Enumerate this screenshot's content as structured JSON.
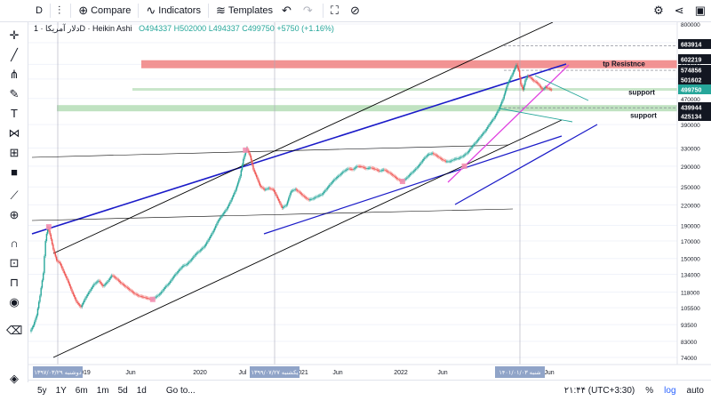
{
  "toolbar": {
    "symbol": "D",
    "compare": "Compare",
    "indicators": "Indicators",
    "templates": "Templates"
  },
  "legend": {
    "name": "دلار آمریکا · 1D · Heikin Ashi",
    "open": "O494337",
    "high": "H502000",
    "low": "L494337",
    "close": "C499750",
    "change": "+5750 (+1.16%)"
  },
  "bottom": {
    "ranges": [
      "5y",
      "1Y",
      "6m",
      "1m",
      "5d",
      "1d"
    ],
    "goto": "Go to...",
    "clock": "۲۱:۴۴ (UTC+3:30)",
    "pct": "%",
    "log": "log",
    "auto": "auto"
  },
  "colors": {
    "up": "#26a69a",
    "down": "#ef5350",
    "blue_line": "#1a1ac8",
    "magenta_line": "#e040e0",
    "teal_line": "#26a69a",
    "resistance_zone": "#f08080",
    "support_zone": "#a5d6a7"
  },
  "chart_data": {
    "type": "candlestick",
    "scale": "log",
    "price_axis_ticks": [
      800000,
      700000,
      600000,
      540000,
      470000,
      390000,
      330000,
      290000,
      250000,
      220000,
      190000,
      170000,
      150000,
      134000,
      118000,
      105500,
      93500,
      83000,
      74000
    ],
    "price_badges": [
      {
        "value": "683914",
        "color": "#131722"
      },
      {
        "value": "602219",
        "color": "#131722"
      },
      {
        "value": "574856",
        "color": "#131722"
      },
      {
        "value": "501602",
        "color": "#131722"
      },
      {
        "value": "499750",
        "color": "#26a69a"
      },
      {
        "value": "439944",
        "color": "#131722"
      },
      {
        "value": "425134",
        "color": "#131722"
      }
    ],
    "time_axis_ticks": [
      "2019",
      "Jun",
      "2020",
      "Jul",
      "2021",
      "Jun",
      "2022",
      "Jun",
      "Jun"
    ],
    "time_badges": [
      "۱۳۹۷/۰۳/۲۹ دوشنبه",
      "۱۳۹۹/۰۷/۲۷ یکشنبه",
      "۱۴۰۱/۰۱/۰۳ شنبه"
    ],
    "annotations": [
      {
        "text": "tp  Resistnce",
        "price": 602219
      },
      {
        "text": "support",
        "price": 501602
      },
      {
        "text": "support",
        "price": 425134
      }
    ],
    "series": [
      {
        "name": "",
        "path": [
          [
            0,
            89000
          ],
          [
            3,
            93000
          ],
          [
            6,
            100000
          ],
          [
            9,
            115000
          ],
          [
            12,
            135000
          ],
          [
            14,
            170000
          ],
          [
            16,
            188000
          ],
          [
            18,
            178000
          ],
          [
            21,
            160000
          ],
          [
            24,
            148000
          ],
          [
            27,
            145000
          ],
          [
            30,
            137000
          ],
          [
            34,
            128000
          ],
          [
            38,
            118000
          ],
          [
            42,
            110000
          ],
          [
            46,
            106000
          ],
          [
            50,
            113000
          ],
          [
            54,
            119000
          ],
          [
            58,
            125000
          ],
          [
            62,
            128000
          ],
          [
            66,
            123000
          ],
          [
            70,
            127000
          ],
          [
            74,
            133000
          ],
          [
            78,
            130000
          ],
          [
            82,
            126000
          ],
          [
            86,
            123000
          ],
          [
            90,
            120000
          ],
          [
            94,
            117000
          ],
          [
            98,
            115000
          ],
          [
            102,
            114000
          ],
          [
            106,
            113000
          ],
          [
            110,
            112000
          ],
          [
            114,
            114000
          ],
          [
            118,
            117000
          ],
          [
            122,
            122000
          ],
          [
            126,
            126000
          ],
          [
            130,
            132000
          ],
          [
            134,
            137000
          ],
          [
            138,
            142000
          ],
          [
            142,
            144000
          ],
          [
            146,
            149000
          ],
          [
            150,
            155000
          ],
          [
            154,
            159000
          ],
          [
            158,
            164000
          ],
          [
            162,
            173000
          ],
          [
            166,
            183000
          ],
          [
            170,
            196000
          ],
          [
            174,
            205000
          ],
          [
            178,
            214000
          ],
          [
            182,
            228000
          ],
          [
            186,
            245000
          ],
          [
            190,
            270000
          ],
          [
            193,
            305000
          ],
          [
            196,
            330000
          ],
          [
            199,
            312000
          ],
          [
            202,
            283000
          ],
          [
            205,
            268000
          ],
          [
            208,
            252000
          ],
          [
            212,
            245000
          ],
          [
            216,
            248000
          ],
          [
            220,
            245000
          ],
          [
            224,
            230000
          ],
          [
            228,
            215000
          ],
          [
            232,
            220000
          ],
          [
            236,
            242000
          ],
          [
            240,
            246000
          ],
          [
            244,
            240000
          ],
          [
            248,
            233000
          ],
          [
            252,
            228000
          ],
          [
            256,
            230000
          ],
          [
            260,
            234000
          ],
          [
            264,
            237000
          ],
          [
            268,
            246000
          ],
          [
            272,
            256000
          ],
          [
            276,
            265000
          ],
          [
            280,
            272000
          ],
          [
            284,
            280000
          ],
          [
            288,
            285000
          ],
          [
            292,
            283000
          ],
          [
            296,
            290000
          ],
          [
            300,
            289000
          ],
          [
            304,
            285000
          ],
          [
            308,
            287000
          ],
          [
            312,
            284000
          ],
          [
            316,
            280000
          ],
          [
            320,
            283000
          ],
          [
            324,
            278000
          ],
          [
            328,
            272000
          ],
          [
            332,
            265000
          ],
          [
            336,
            260000
          ],
          [
            340,
            265000
          ],
          [
            344,
            274000
          ],
          [
            348,
            282000
          ],
          [
            352,
            292000
          ],
          [
            356,
            305000
          ],
          [
            360,
            315000
          ],
          [
            364,
            318000
          ],
          [
            368,
            312000
          ],
          [
            372,
            305000
          ],
          [
            376,
            300000
          ],
          [
            380,
            300000
          ],
          [
            384,
            305000
          ],
          [
            388,
            307000
          ],
          [
            392,
            312000
          ],
          [
            396,
            320000
          ],
          [
            400,
            334000
          ],
          [
            404,
            346000
          ],
          [
            408,
            360000
          ],
          [
            412,
            374000
          ],
          [
            416,
            393000
          ],
          [
            420,
            410000
          ],
          [
            424,
            435000
          ],
          [
            428,
            470000
          ],
          [
            432,
            522000
          ],
          [
            436,
            556000
          ],
          [
            440,
            598000
          ],
          [
            442,
            575000
          ],
          [
            444,
            520000
          ],
          [
            446,
            500000
          ],
          [
            448,
            535000
          ],
          [
            450,
            552000
          ],
          [
            452,
            548000
          ],
          [
            454,
            540000
          ],
          [
            456,
            532000
          ],
          [
            458,
            528000
          ],
          [
            460,
            520000
          ],
          [
            462,
            508000
          ],
          [
            464,
            502000
          ],
          [
            466,
            510000
          ],
          [
            468,
            507000
          ],
          [
            470,
            503000
          ],
          [
            472,
            499750
          ]
        ]
      }
    ]
  }
}
